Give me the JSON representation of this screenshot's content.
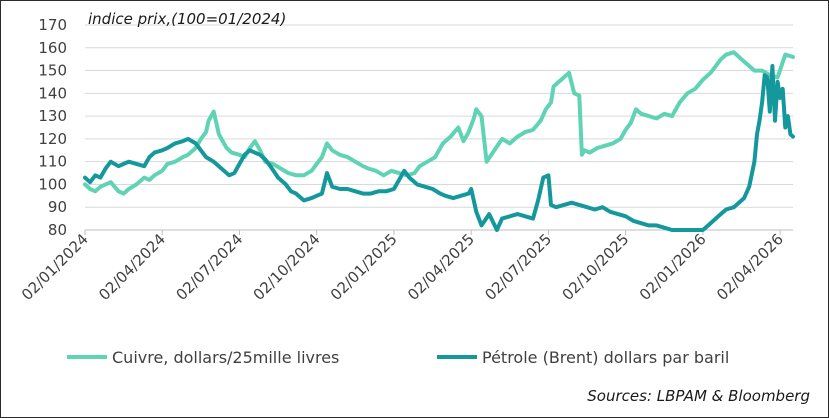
{
  "chart_data": {
    "type": "line",
    "subtitle": "indice prix,(100=01/2024)",
    "source": "Sources: LBPAM & Bloomberg",
    "ylim": [
      80,
      170
    ],
    "yticks": [
      80,
      90,
      100,
      110,
      120,
      130,
      140,
      150,
      160,
      170
    ],
    "xlim": [
      0,
      27.5
    ],
    "xticks": [
      {
        "label": "02/01/2024",
        "x": 0
      },
      {
        "label": "02/04/2024",
        "x": 3
      },
      {
        "label": "02/07/2024",
        "x": 6
      },
      {
        "label": "02/10/2024",
        "x": 9
      },
      {
        "label": "02/01/2025",
        "x": 12
      },
      {
        "label": "02/04/2025",
        "x": 15
      },
      {
        "label": "02/07/2025",
        "x": 18
      },
      {
        "label": "02/10/2025",
        "x": 21
      },
      {
        "label": "02/01/2026",
        "x": 24
      },
      {
        "label": "02/04/2026",
        "x": 27
      }
    ],
    "grid": true,
    "legend_position": "bottom",
    "series": [
      {
        "name": "Cuivre, dollars/25mille livres",
        "color": "#5fd3b4",
        "x": [
          0,
          0.2,
          0.4,
          0.6,
          0.8,
          1.0,
          1.3,
          1.5,
          1.7,
          2.0,
          2.3,
          2.5,
          2.7,
          3.0,
          3.2,
          3.5,
          3.8,
          4.0,
          4.3,
          4.5,
          4.7,
          4.8,
          5.0,
          5.2,
          5.4,
          5.5,
          5.7,
          6.0,
          6.2,
          6.4,
          6.6,
          6.8,
          7.0,
          7.3,
          7.6,
          7.9,
          8.2,
          8.5,
          8.8,
          9.0,
          9.2,
          9.4,
          9.6,
          9.9,
          10.2,
          10.5,
          10.8,
          11.0,
          11.3,
          11.6,
          11.9,
          12.2,
          12.5,
          12.8,
          13.0,
          13.3,
          13.6,
          13.9,
          14.2,
          14.5,
          14.7,
          14.9,
          15.1,
          15.2,
          15.4,
          15.6,
          15.9,
          16.2,
          16.5,
          16.8,
          17.1,
          17.4,
          17.7,
          17.9,
          18.1,
          18.2,
          18.4,
          18.6,
          18.8,
          19.0,
          19.2,
          19.3,
          19.4,
          19.6,
          19.9,
          20.2,
          20.5,
          20.8,
          21.0,
          21.2,
          21.4,
          21.6,
          21.9,
          22.2,
          22.5,
          22.8,
          23.1,
          23.4,
          23.7,
          24.0,
          24.3,
          24.5,
          24.7,
          24.9,
          25.2,
          25.5,
          25.8,
          26.0,
          26.3,
          26.6,
          26.9,
          27.2,
          27.5
        ],
        "values": [
          100,
          98,
          97,
          99,
          100,
          101,
          97,
          96,
          98,
          100,
          103,
          102,
          104,
          106,
          109,
          110,
          112,
          113,
          116,
          120,
          123,
          128,
          132,
          122,
          118,
          116,
          114,
          113,
          112,
          116,
          119,
          115,
          110,
          109,
          107,
          105,
          104,
          104,
          106,
          109,
          112,
          118,
          115,
          113,
          112,
          110,
          108,
          107,
          106,
          104,
          106,
          105,
          104,
          105,
          108,
          110,
          112,
          118,
          121,
          125,
          119,
          123,
          129,
          133,
          130,
          110,
          115,
          120,
          118,
          121,
          123,
          124,
          128,
          133,
          136,
          143,
          145,
          147,
          149,
          140,
          139,
          113,
          115,
          114,
          116,
          117,
          118,
          120,
          124,
          127,
          133,
          131,
          130,
          129,
          131,
          130,
          136,
          140,
          142,
          146,
          149,
          152,
          155,
          157,
          158,
          155,
          152,
          150,
          150,
          148,
          147,
          157,
          156
        ],
        "line_width": 4
      },
      {
        "name": "Pétrole (Brent) dollars par baril",
        "color": "#15989c",
        "x": [
          0,
          0.2,
          0.4,
          0.6,
          0.8,
          1.0,
          1.3,
          1.5,
          1.7,
          2.0,
          2.3,
          2.5,
          2.7,
          3.0,
          3.2,
          3.5,
          3.8,
          4.0,
          4.3,
          4.5,
          4.7,
          5.0,
          5.2,
          5.4,
          5.6,
          5.8,
          6.0,
          6.2,
          6.4,
          6.6,
          6.8,
          7.0,
          7.2,
          7.5,
          7.8,
          8.0,
          8.2,
          8.5,
          8.8,
          9.0,
          9.2,
          9.4,
          9.6,
          9.9,
          10.2,
          10.5,
          10.8,
          11.1,
          11.4,
          11.7,
          12.0,
          12.2,
          12.4,
          12.6,
          12.9,
          13.2,
          13.5,
          13.8,
          14.0,
          14.3,
          14.6,
          14.9,
          15.0,
          15.2,
          15.4,
          15.7,
          16.0,
          16.2,
          16.5,
          16.8,
          17.1,
          17.4,
          17.6,
          17.8,
          18.0,
          18.1,
          18.3,
          18.6,
          18.9,
          19.2,
          19.5,
          19.8,
          20.1,
          20.4,
          20.7,
          21.0,
          21.3,
          21.6,
          21.9,
          22.2,
          22.5,
          22.8,
          23.1,
          23.4,
          23.7,
          24.0,
          24.3,
          24.6,
          24.9,
          25.2,
          25.4,
          25.6,
          25.8,
          26.0,
          26.1,
          26.2,
          26.3,
          26.4,
          26.5,
          26.6,
          26.7,
          26.8,
          26.9,
          27.0,
          27.1,
          27.2,
          27.3,
          27.4,
          27.5
        ],
        "values": [
          103,
          101,
          104,
          103,
          107,
          110,
          108,
          109,
          110,
          109,
          108,
          112,
          114,
          115,
          116,
          118,
          119,
          120,
          118,
          115,
          112,
          110,
          108,
          106,
          104,
          105,
          109,
          113,
          115,
          114,
          113,
          111,
          108,
          103,
          100,
          97,
          96,
          93,
          94,
          95,
          96,
          105,
          99,
          98,
          98,
          97,
          96,
          96,
          97,
          97,
          98,
          102,
          106,
          103,
          100,
          99,
          98,
          96,
          95,
          94,
          95,
          96,
          98,
          88,
          82,
          87,
          80,
          85,
          86,
          87,
          86,
          85,
          93,
          103,
          104,
          91,
          90,
          91,
          92,
          91,
          90,
          89,
          90,
          88,
          87,
          86,
          84,
          83,
          82,
          82,
          81,
          80,
          80,
          79,
          79,
          80,
          83,
          86,
          89,
          90,
          92,
          94,
          99,
          110,
          122,
          128,
          136,
          148,
          147,
          132,
          152,
          128,
          145,
          138,
          142,
          125,
          130,
          122,
          121
        ],
        "line_width": 4
      }
    ]
  }
}
